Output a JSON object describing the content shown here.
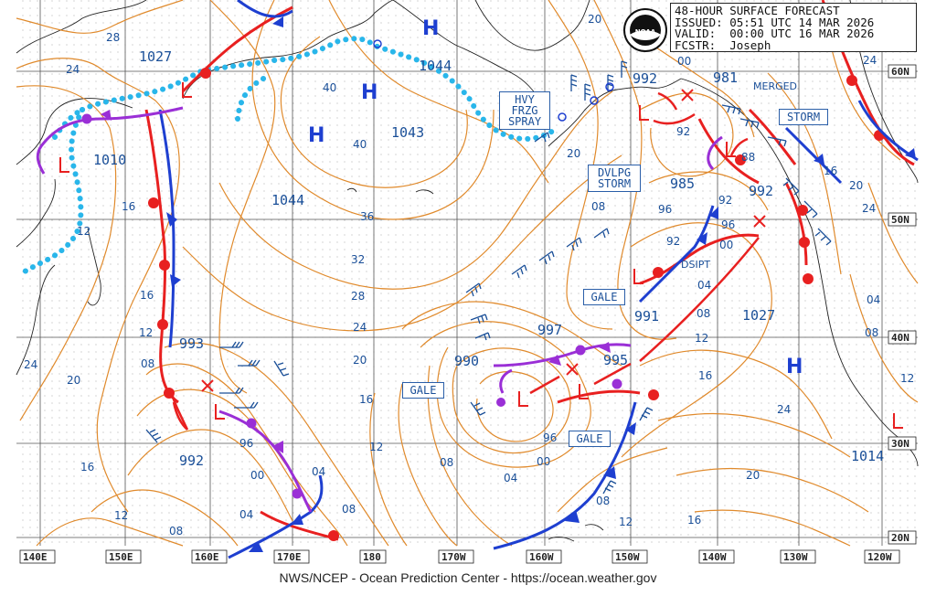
{
  "header": {
    "line1": "48-HOUR SURFACE FORECAST",
    "line2": "ISSUED: 05:51 UTC 14 MAR 2026",
    "line3": "VALID:  00:00 UTC 16 MAR 2026",
    "line4": "FCSTR:  Joseph"
  },
  "logo_text": "NOAA",
  "credit": "NWS/NCEP - Ocean Prediction Center - https://ocean.weather.gov",
  "longitude_labels": [
    "140E",
    "150E",
    "160E",
    "170E",
    "180",
    "170W",
    "160W",
    "150W",
    "140W",
    "130W",
    "120W"
  ],
  "latitude_labels": [
    "60N",
    "50N",
    "40N",
    "30N",
    "20N"
  ],
  "pressure_centers": [
    {
      "type": "H",
      "value": "1027"
    },
    {
      "type": "H",
      "value": "1044"
    },
    {
      "type": "H",
      "value": "1043"
    },
    {
      "type": "H",
      "value": "1044"
    },
    {
      "type": "L",
      "value": "1010"
    },
    {
      "type": "L",
      "value": "992"
    },
    {
      "type": "L",
      "value": "981"
    },
    {
      "type": "L",
      "value": "985"
    },
    {
      "type": "L",
      "value": "992"
    },
    {
      "type": "L",
      "value": "991"
    },
    {
      "type": "H",
      "value": "1027"
    },
    {
      "type": "L",
      "value": "993"
    },
    {
      "type": "L",
      "value": "992"
    },
    {
      "type": "L",
      "value": "990"
    },
    {
      "type": "L",
      "value": "997"
    },
    {
      "type": "L",
      "value": "995"
    },
    {
      "type": "L",
      "value": "1014"
    },
    {
      "type": "H",
      "value": ""
    }
  ],
  "isobar_labels": [
    "28",
    "24",
    "16",
    "16",
    "12",
    "08",
    "24",
    "20",
    "16",
    "12",
    "08",
    "04",
    "00",
    "96",
    "04",
    "08",
    "12",
    "40",
    "40",
    "36",
    "32",
    "28",
    "24",
    "20",
    "16",
    "12",
    "08",
    "04",
    "00",
    "96",
    "08",
    "12",
    "16",
    "20",
    "24",
    "08",
    "96",
    "92",
    "00",
    "04",
    "08",
    "12",
    "16",
    "20",
    "24",
    "24",
    "20",
    "16",
    "92",
    "92",
    "88",
    "96",
    "00",
    "04",
    "08",
    "12",
    "20"
  ],
  "warning_boxes": {
    "hvy": [
      "HVY",
      "FRZG",
      "SPRAY"
    ],
    "dvlpg": [
      "DVLPG",
      "STORM"
    ],
    "storm": "STORM",
    "gale1": "GALE",
    "gale2": "GALE",
    "gale3": "GALE"
  },
  "annotations": {
    "merged": "MERGED",
    "dsipt": "DSIPT"
  },
  "colors": {
    "isobar": "#e08a2c",
    "ice": "#29b6ea",
    "warm": "#e82020",
    "cold": "#1e3fd0",
    "occluded": "#9a2fd6",
    "text": "#1a4f98",
    "grid": "#555555"
  }
}
